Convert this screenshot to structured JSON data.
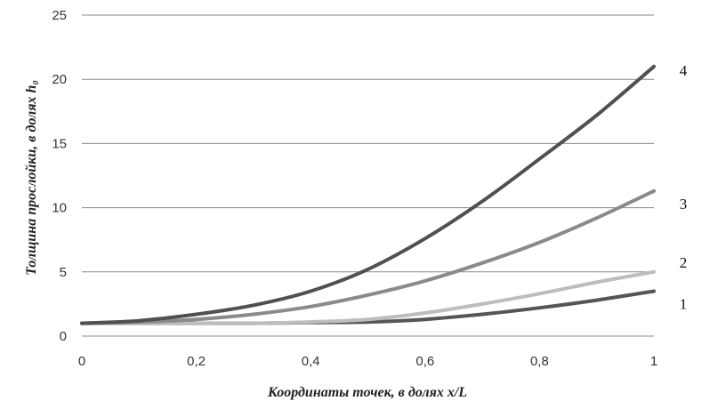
{
  "chart_data": {
    "type": "line",
    "xlabel": "Координаты точек, в долях x/L",
    "ylabel": "Толщина прослойки, в долях h₀",
    "xlim": [
      0,
      1
    ],
    "ylim": [
      0,
      25
    ],
    "x_ticks": [
      "0",
      "0,2",
      "0,4",
      "0,6",
      "0,8",
      "1"
    ],
    "y_ticks": [
      "0",
      "5",
      "10",
      "15",
      "20",
      "25"
    ],
    "grid": "horizontal",
    "x": [
      0,
      0.1,
      0.2,
      0.3,
      0.4,
      0.5,
      0.6,
      0.7,
      0.8,
      0.9,
      1
    ],
    "series": [
      {
        "name": "1",
        "color": "#555555",
        "values": [
          1.0,
          1.0,
          1.0,
          1.0,
          1.05,
          1.1,
          1.3,
          1.7,
          2.2,
          2.8,
          3.5
        ]
      },
      {
        "name": "2",
        "color": "#bdbdbd",
        "values": [
          1.0,
          1.0,
          1.0,
          1.0,
          1.1,
          1.3,
          1.8,
          2.5,
          3.3,
          4.2,
          5.0
        ]
      },
      {
        "name": "3",
        "color": "#8a8a8a",
        "values": [
          1.0,
          1.1,
          1.3,
          1.7,
          2.3,
          3.2,
          4.3,
          5.7,
          7.3,
          9.2,
          11.3
        ]
      },
      {
        "name": "4",
        "color": "#505050",
        "values": [
          1.0,
          1.2,
          1.7,
          2.4,
          3.5,
          5.2,
          7.6,
          10.5,
          13.8,
          17.2,
          21.0
        ]
      }
    ]
  }
}
